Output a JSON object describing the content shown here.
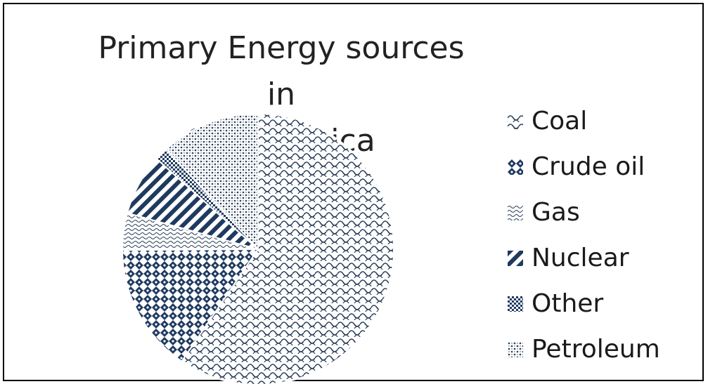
{
  "chart_data": {
    "type": "pie",
    "title_lines": [
      "Primary Energy sources in",
      "South Africa"
    ],
    "categories": [
      "Coal",
      "Crude oil",
      "Gas",
      "Nuclear",
      "Other",
      "Petroleum"
    ],
    "values": [
      59.5,
      15.4,
      4.4,
      7.3,
      1.6,
      11.8
    ],
    "unit": "",
    "legend_position": "right",
    "colors": {
      "pattern_ink": "#1f3a5f",
      "background": "#ffffff"
    }
  }
}
